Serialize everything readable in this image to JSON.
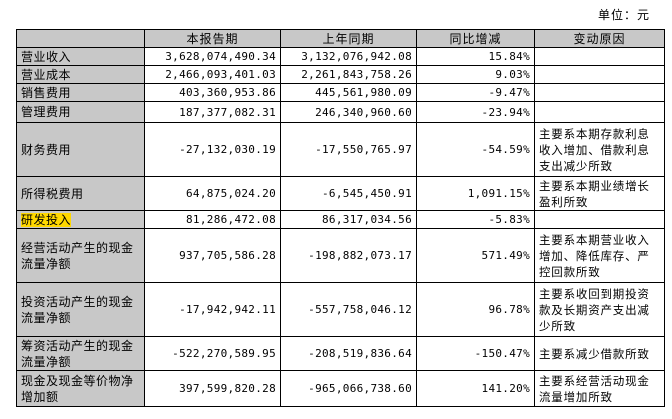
{
  "unit_label": "单位：元",
  "headers": [
    "",
    "本报告期",
    "上年同期",
    "同比增减",
    "变动原因"
  ],
  "rows": [
    {
      "item": "营业收入",
      "current": "3,628,074,490.34",
      "prior": "3,132,076,942.08",
      "change": "15.84%",
      "reason": ""
    },
    {
      "item": "营业成本",
      "current": "2,466,093,401.03",
      "prior": "2,261,843,758.26",
      "change": "9.03%",
      "reason": ""
    },
    {
      "item": "销售费用",
      "current": "403,360,953.86",
      "prior": "445,561,980.09",
      "change": "-9.47%",
      "reason": ""
    },
    {
      "item": "管理费用",
      "current": "187,377,082.31",
      "prior": "246,340,960.60",
      "change": "-23.94%",
      "reason": ""
    },
    {
      "item": "财务费用",
      "current": "-27,132,030.19",
      "prior": "-17,550,765.97",
      "change": "-54.59%",
      "reason": "主要系本期存款利息收入增加、借款利息支出减少所致"
    },
    {
      "item": "所得税费用",
      "current": "64,875,024.20",
      "prior": "-6,545,450.91",
      "change": "1,091.15%",
      "reason": "主要系本期业绩增长盈利所致"
    },
    {
      "item": "研发投入",
      "current": "81,286,472.08",
      "prior": "86,317,034.56",
      "change": "-5.83%",
      "reason": ""
    },
    {
      "item": "经营活动产生的现金流量净额",
      "current": "937,705,586.28",
      "prior": "-198,882,073.17",
      "change": "571.49%",
      "reason": "主要系本期营业收入增加、降低库存、严控回款所致"
    },
    {
      "item": "投资活动产生的现金流量净额",
      "current": "-17,942,942.11",
      "prior": "-557,758,046.12",
      "change": "96.78%",
      "reason": "主要系收回到期投资款及长期资产支出减少所致"
    },
    {
      "item": "筹资活动产生的现金流量净额",
      "current": "-522,270,589.95",
      "prior": "-208,519,836.64",
      "change": "-150.47%",
      "reason": "主要系减少借款所致"
    },
    {
      "item": "现金及现金等价物净增加额",
      "current": "397,599,820.28",
      "prior": "-965,066,738.60",
      "change": "141.20%",
      "reason": "主要系经营活动现金流量增加所致"
    }
  ],
  "highlight_color": "#ffd800"
}
